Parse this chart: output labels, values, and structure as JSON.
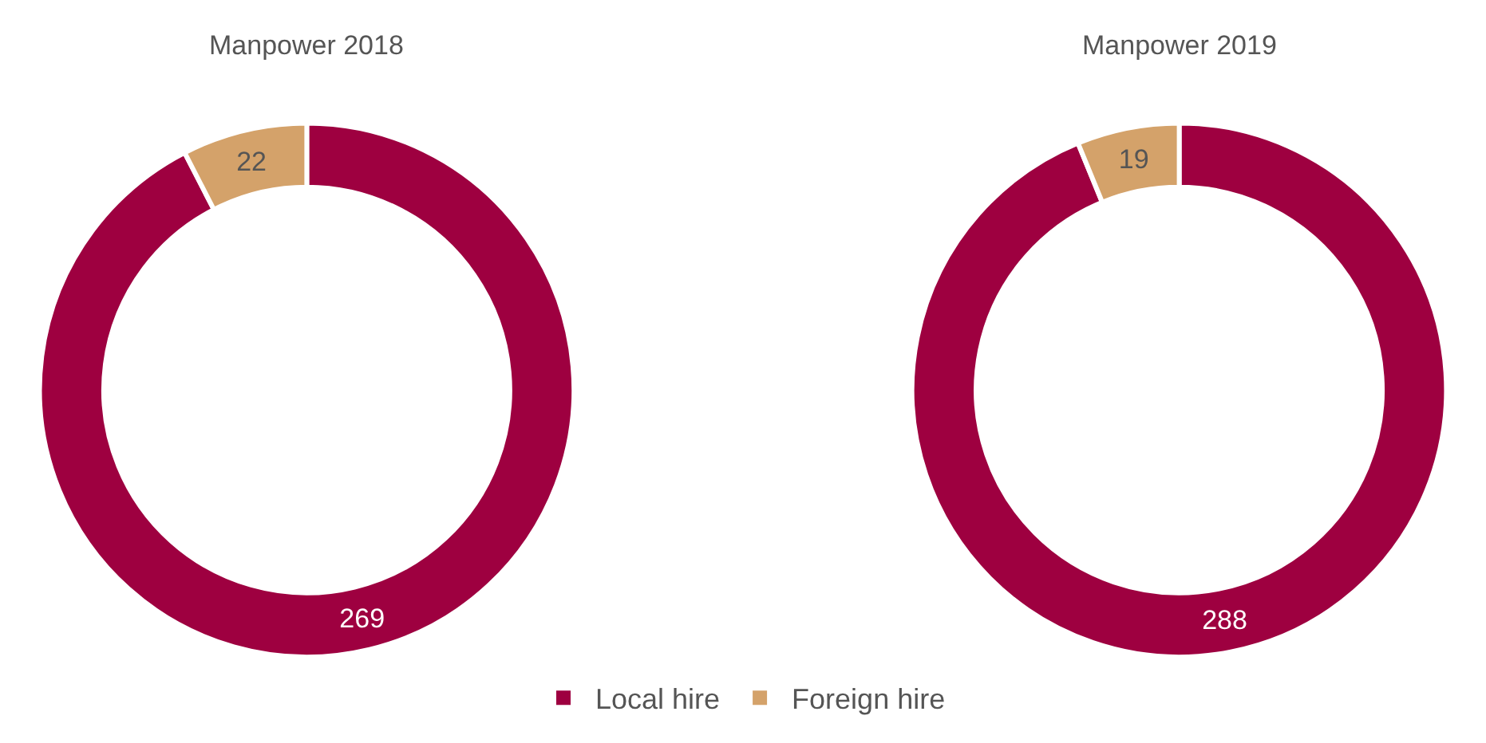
{
  "chart_data": {
    "type": "donut",
    "categories": [
      "Local hire",
      "Foreign hire"
    ],
    "colors": [
      "#9e0040",
      "#d4a26a"
    ],
    "data_labels": true,
    "legend": "bottom",
    "series": [
      {
        "name": "Manpower 2018",
        "values": [
          269,
          22
        ]
      },
      {
        "name": "Manpower 2019",
        "values": [
          288,
          19
        ]
      }
    ]
  }
}
